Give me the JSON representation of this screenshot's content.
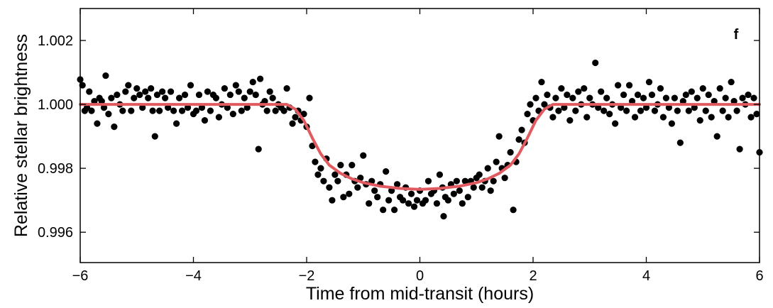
{
  "chart_data": {
    "type": "scatter",
    "panel_label": "f",
    "xlabel": "Time from mid-transit (hours)",
    "ylabel": "Relative stellar brightness",
    "xlim": [
      -6,
      6
    ],
    "ylim": [
      0.99505,
      0.1003
    ],
    "x_ticks": [
      -6,
      -4,
      -2,
      0,
      2,
      4,
      6
    ],
    "x_tick_labels": [
      "−6",
      "−4",
      "−2",
      "0",
      "2",
      "4",
      "6"
    ],
    "y_ticks": [
      0.996,
      0.998,
      1.0,
      1.002
    ],
    "y_tick_labels": [
      "0.996",
      "0.998",
      "1.000",
      "1.002"
    ],
    "grid": false,
    "series": [
      {
        "kind": "points",
        "color": "#000000",
        "points": [
          [
            -6.0,
            1.00078
          ],
          [
            -5.96,
            1.0006
          ],
          [
            -5.92,
            0.9998
          ],
          [
            -5.88,
            0.9999
          ],
          [
            -5.84,
            1.0004
          ],
          [
            -5.8,
            0.9998
          ],
          [
            -5.75,
            1.0001
          ],
          [
            -5.7,
            0.9994
          ],
          [
            -5.66,
            1.0002
          ],
          [
            -5.62,
            1.0001
          ],
          [
            -5.58,
            0.9999
          ],
          [
            -5.55,
            1.0009
          ],
          [
            -5.5,
            0.9997
          ],
          [
            -5.45,
            1.0002
          ],
          [
            -5.4,
            0.9993
          ],
          [
            -5.35,
            1.0003
          ],
          [
            -5.3,
            1.0
          ],
          [
            -5.25,
            0.9998
          ],
          [
            -5.2,
            1.0004
          ],
          [
            -5.15,
            1.0006
          ],
          [
            -5.1,
            0.9998
          ],
          [
            -5.05,
            1.0002
          ],
          [
            -5.0,
            1.0005
          ],
          [
            -4.95,
            1.0003
          ],
          [
            -4.9,
            0.9999
          ],
          [
            -4.85,
            1.0004
          ],
          [
            -4.8,
            1.0002
          ],
          [
            -4.75,
            1.0005
          ],
          [
            -4.72,
            0.9998
          ],
          [
            -4.68,
            0.999
          ],
          [
            -4.64,
            1.0003
          ],
          [
            -4.6,
            0.9998
          ],
          [
            -4.55,
            1.0004
          ],
          [
            -4.5,
            1.0002
          ],
          [
            -4.45,
            0.9999
          ],
          [
            -4.4,
            1.0004
          ],
          [
            -4.35,
            0.9998
          ],
          [
            -4.3,
            0.9994
          ],
          [
            -4.25,
            1.0002
          ],
          [
            -4.2,
            0.9998
          ],
          [
            -4.15,
            1.0003
          ],
          [
            -4.1,
            0.9999
          ],
          [
            -4.05,
            1.0006
          ],
          [
            -4.0,
            0.9997
          ],
          [
            -3.95,
            0.9998
          ],
          [
            -3.9,
            1.0003
          ],
          [
            -3.85,
            0.9999
          ],
          [
            -3.8,
            0.9995
          ],
          [
            -3.75,
            1.0004
          ],
          [
            -3.7,
            0.9998
          ],
          [
            -3.65,
            1.0003
          ],
          [
            -3.6,
            1.0002
          ],
          [
            -3.55,
            0.9996
          ],
          [
            -3.5,
            1.0
          ],
          [
            -3.45,
            1.0005
          ],
          [
            -3.4,
            0.9999
          ],
          [
            -3.35,
            1.0003
          ],
          [
            -3.3,
            0.9997
          ],
          [
            -3.25,
            1.0006
          ],
          [
            -3.2,
            1.0004
          ],
          [
            -3.15,
            0.9998
          ],
          [
            -3.1,
            1.0002
          ],
          [
            -3.05,
            0.9999
          ],
          [
            -3.0,
            1.0004
          ],
          [
            -2.95,
            1.0007
          ],
          [
            -2.9,
            1.0003
          ],
          [
            -2.85,
            0.9986
          ],
          [
            -2.82,
            1.0008
          ],
          [
            -2.78,
            1.0
          ],
          [
            -2.74,
            1.0001
          ],
          [
            -2.7,
            0.9998
          ],
          [
            -2.65,
            1.0004
          ],
          [
            -2.6,
            1.0002
          ],
          [
            -2.55,
            0.9998
          ],
          [
            -2.5,
            1.0
          ],
          [
            -2.45,
            0.9999
          ],
          [
            -2.4,
            0.9998
          ],
          [
            -2.35,
            1.0005
          ],
          [
            -2.3,
            0.9999
          ],
          [
            -2.25,
            0.9994
          ],
          [
            -2.2,
            0.9996
          ],
          [
            -2.15,
            0.9998
          ],
          [
            -2.1,
            0.9995
          ],
          [
            -2.05,
            0.9997
          ],
          [
            -2.0,
            0.9993
          ],
          [
            -1.95,
            1.0002
          ],
          [
            -1.9,
            0.9987
          ],
          [
            -1.85,
            0.9982
          ],
          [
            -1.8,
            0.9978
          ],
          [
            -1.75,
            0.998
          ],
          [
            -1.7,
            0.9976
          ],
          [
            -1.65,
            0.9983
          ],
          [
            -1.6,
            0.9974
          ],
          [
            -1.55,
            0.997
          ],
          [
            -1.5,
            0.9978
          ],
          [
            -1.45,
            0.9976
          ],
          [
            -1.4,
            0.9981
          ],
          [
            -1.35,
            0.9971
          ],
          [
            -1.3,
            0.9978
          ],
          [
            -1.25,
            0.9972
          ],
          [
            -1.2,
            0.9981
          ],
          [
            -1.15,
            0.9976
          ],
          [
            -1.1,
            0.9974
          ],
          [
            -1.05,
            0.9977
          ],
          [
            -1.0,
            0.9984
          ],
          [
            -0.95,
            0.9975
          ],
          [
            -0.9,
            0.9969
          ],
          [
            -0.85,
            0.9976
          ],
          [
            -0.8,
            0.9973
          ],
          [
            -0.75,
            0.9971
          ],
          [
            -0.7,
            0.9975
          ],
          [
            -0.65,
            0.9967
          ],
          [
            -0.6,
            0.9979
          ],
          [
            -0.55,
            0.997
          ],
          [
            -0.5,
            0.9973
          ],
          [
            -0.45,
            0.9967
          ],
          [
            -0.4,
            0.9975
          ],
          [
            -0.35,
            0.9971
          ],
          [
            -0.3,
            0.997
          ],
          [
            -0.25,
            0.9974
          ],
          [
            -0.2,
            0.9969
          ],
          [
            -0.15,
            0.9972
          ],
          [
            -0.1,
            0.9968
          ],
          [
            -0.05,
            0.997
          ],
          [
            0.0,
            0.9973
          ],
          [
            0.05,
            0.9969
          ],
          [
            0.1,
            0.997
          ],
          [
            0.15,
            0.9976
          ],
          [
            0.2,
            0.9972
          ],
          [
            0.25,
            0.9973
          ],
          [
            0.3,
            0.9969
          ],
          [
            0.35,
            0.9978
          ],
          [
            0.4,
            0.9974
          ],
          [
            0.42,
            0.9965
          ],
          [
            0.45,
            0.9971
          ],
          [
            0.5,
            0.997
          ],
          [
            0.55,
            0.9975
          ],
          [
            0.6,
            0.9972
          ],
          [
            0.65,
            0.9976
          ],
          [
            0.7,
            0.9973
          ],
          [
            0.75,
            0.9969
          ],
          [
            0.8,
            0.9976
          ],
          [
            0.85,
            0.9971
          ],
          [
            0.9,
            0.9976
          ],
          [
            0.95,
            0.9974
          ],
          [
            1.0,
            0.9977
          ],
          [
            1.05,
            0.9978
          ],
          [
            1.1,
            0.9974
          ],
          [
            1.15,
            0.9976
          ],
          [
            1.2,
            0.998
          ],
          [
            1.25,
            0.9973
          ],
          [
            1.3,
            0.9976
          ],
          [
            1.35,
            0.9982
          ],
          [
            1.4,
            0.999
          ],
          [
            1.45,
            0.998
          ],
          [
            1.5,
            0.9977
          ],
          [
            1.55,
            0.9981
          ],
          [
            1.6,
            0.9985
          ],
          [
            1.65,
            0.9967
          ],
          [
            1.7,
            0.9982
          ],
          [
            1.75,
            0.9989
          ],
          [
            1.8,
            0.9992
          ],
          [
            1.85,
            0.9988
          ],
          [
            1.9,
            0.9997
          ],
          [
            1.95,
            1.0
          ],
          [
            2.0,
            0.9995
          ],
          [
            2.05,
            1.0002
          ],
          [
            2.1,
            0.9998
          ],
          [
            2.15,
            1.0007
          ],
          [
            2.2,
            1.0
          ],
          [
            2.25,
            1.0003
          ],
          [
            2.3,
            0.9999
          ],
          [
            2.35,
            0.9996
          ],
          [
            2.4,
            1.0002
          ],
          [
            2.45,
            0.9998
          ],
          [
            2.5,
            1.0005
          ],
          [
            2.55,
            0.9999
          ],
          [
            2.6,
            1.0003
          ],
          [
            2.65,
            0.9995
          ],
          [
            2.7,
            1.0002
          ],
          [
            2.75,
            0.9998
          ],
          [
            2.8,
            1.0004
          ],
          [
            2.85,
            1.0
          ],
          [
            2.9,
            1.0005
          ],
          [
            2.95,
            0.9996
          ],
          [
            3.0,
            1.0002
          ],
          [
            3.05,
            1.0
          ],
          [
            3.1,
            1.0013
          ],
          [
            3.15,
            0.9999
          ],
          [
            3.2,
            1.0004
          ],
          [
            3.25,
            0.9998
          ],
          [
            3.3,
            1.0002
          ],
          [
            3.35,
            0.9997
          ],
          [
            3.4,
            1.0
          ],
          [
            3.45,
            0.9994
          ],
          [
            3.5,
            1.0006
          ],
          [
            3.55,
            0.9999
          ],
          [
            3.6,
            1.0003
          ],
          [
            3.65,
            0.9998
          ],
          [
            3.7,
            1.0006
          ],
          [
            3.75,
            1.0001
          ],
          [
            3.8,
            0.9996
          ],
          [
            3.85,
            1.0003
          ],
          [
            3.9,
            0.9998
          ],
          [
            3.95,
            1.0002
          ],
          [
            4.0,
            0.9999
          ],
          [
            4.05,
            1.0007
          ],
          [
            4.1,
            1.0003
          ],
          [
            4.15,
            0.9998
          ],
          [
            4.2,
            1.0
          ],
          [
            4.25,
            1.0005
          ],
          [
            4.3,
            0.9996
          ],
          [
            4.35,
            1.0002
          ],
          [
            4.4,
            0.9999
          ],
          [
            4.45,
            0.9994
          ],
          [
            4.5,
            1.0002
          ],
          [
            4.55,
            0.9998
          ],
          [
            4.6,
            0.9988
          ],
          [
            4.65,
            1.0001
          ],
          [
            4.7,
            1.0003
          ],
          [
            4.75,
            0.9998
          ],
          [
            4.8,
            1.0004
          ],
          [
            4.85,
            0.9999
          ],
          [
            4.9,
            1.0002
          ],
          [
            4.95,
            0.9995
          ],
          [
            5.0,
            1.0005
          ],
          [
            5.05,
            0.9998
          ],
          [
            5.1,
            1.0003
          ],
          [
            5.15,
            0.9996
          ],
          [
            5.2,
            1.0001
          ],
          [
            5.25,
            0.999
          ],
          [
            5.3,
            1.0005
          ],
          [
            5.35,
            0.9998
          ],
          [
            5.4,
            1.0002
          ],
          [
            5.45,
            0.9996
          ],
          [
            5.5,
            1.0007
          ],
          [
            5.55,
            1.0001
          ],
          [
            5.6,
            0.9998
          ],
          [
            5.65,
            0.9986
          ],
          [
            5.7,
            1.0002
          ],
          [
            5.75,
            1.0
          ],
          [
            5.8,
            1.0003
          ],
          [
            5.85,
            0.9996
          ],
          [
            5.9,
            1.0002
          ],
          [
            5.95,
            0.9997
          ],
          [
            6.0,
            0.9985
          ]
        ]
      },
      {
        "kind": "model-curve",
        "color": "#e05a5f",
        "points": [
          [
            -6,
            1.0
          ],
          [
            -2.35,
            1.0
          ],
          [
            -2.2,
            0.99985
          ],
          [
            -2.05,
            0.9995
          ],
          [
            -1.9,
            0.99895
          ],
          [
            -1.75,
            0.99845
          ],
          [
            -1.6,
            0.9981
          ],
          [
            -1.4,
            0.99784
          ],
          [
            -1.2,
            0.99767
          ],
          [
            -1.0,
            0.99755
          ],
          [
            -0.7,
            0.99744
          ],
          [
            -0.35,
            0.99737
          ],
          [
            0,
            0.99734
          ],
          [
            0.35,
            0.99737
          ],
          [
            0.7,
            0.99744
          ],
          [
            1.0,
            0.99755
          ],
          [
            1.2,
            0.99767
          ],
          [
            1.4,
            0.99784
          ],
          [
            1.6,
            0.9981
          ],
          [
            1.75,
            0.99845
          ],
          [
            1.9,
            0.99895
          ],
          [
            2.05,
            0.9995
          ],
          [
            2.2,
            0.99985
          ],
          [
            2.35,
            1.0
          ],
          [
            6,
            1.0
          ]
        ]
      }
    ]
  }
}
